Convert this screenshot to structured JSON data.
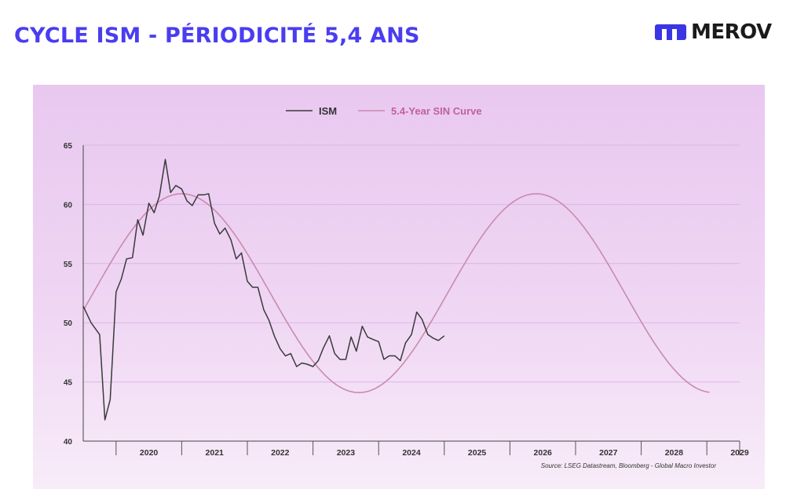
{
  "header": {
    "title": "CYCLE ISM - PÉRIODICITÉ 5,4 ANS",
    "logo_text": "MEROV",
    "logo_icon": "merov-m-icon",
    "accent_color": "#4a3df0"
  },
  "chart_data": {
    "type": "line",
    "title": "",
    "xlabel": "",
    "ylabel": "",
    "ylim": [
      40,
      65
    ],
    "yticks": [
      "65",
      "60",
      "55",
      "50",
      "45",
      "40"
    ],
    "xticks": [
      "2020",
      "2021",
      "2022",
      "2023",
      "2024",
      "2025",
      "2026",
      "2027",
      "2028",
      "2029"
    ],
    "grid": true,
    "legend_position": "top-center",
    "source": "Source: LSEG Datastream, Bloomberg - Global Macro Investor",
    "series": [
      {
        "name": "ISM",
        "color": "#3a3a3a",
        "x": [
          2019.5,
          2019.62,
          2019.75,
          2019.83,
          2019.91,
          2020.0,
          2020.08,
          2020.16,
          2020.25,
          2020.33,
          2020.41,
          2020.5,
          2020.58,
          2020.66,
          2020.75,
          2020.83,
          2020.91,
          2021.0,
          2021.08,
          2021.16,
          2021.25,
          2021.33,
          2021.41,
          2021.5,
          2021.58,
          2021.66,
          2021.75,
          2021.83,
          2021.91,
          2022.0,
          2022.08,
          2022.16,
          2022.25,
          2022.33,
          2022.41,
          2022.5,
          2022.58,
          2022.66,
          2022.75,
          2022.83,
          2022.91,
          2023.0,
          2023.08,
          2023.16,
          2023.25,
          2023.33,
          2023.41,
          2023.5,
          2023.58,
          2023.66,
          2023.75,
          2023.83,
          2023.91,
          2024.0,
          2024.08,
          2024.16,
          2024.25,
          2024.33,
          2024.41,
          2024.5,
          2024.58,
          2024.66,
          2024.75,
          2024.83,
          2024.91,
          2025.0
        ],
        "values": [
          51.4,
          50.0,
          49.0,
          41.8,
          43.5,
          52.6,
          53.7,
          55.4,
          55.5,
          58.7,
          57.4,
          60.1,
          59.3,
          60.7,
          63.8,
          61.0,
          61.6,
          61.3,
          60.3,
          59.9,
          60.8,
          60.8,
          60.9,
          58.4,
          57.5,
          58.0,
          57.0,
          55.4,
          55.9,
          53.5,
          53.0,
          53.0,
          51.1,
          50.2,
          48.9,
          47.8,
          47.2,
          47.4,
          46.3,
          46.6,
          46.5,
          46.3,
          46.8,
          47.9,
          48.9,
          47.4,
          46.9,
          46.9,
          48.8,
          47.6,
          49.7,
          48.8,
          48.6,
          48.4,
          46.9,
          47.2,
          47.2,
          46.8,
          48.3,
          49.0,
          50.9,
          50.3,
          49.0,
          48.7,
          48.5,
          48.9
        ]
      },
      {
        "name": "5.4-Year SIN Curve",
        "color": "#c98ab0",
        "model": "sine",
        "mean": 52.5,
        "amplitude": 8.4,
        "period_years": 5.4,
        "peak_year": 2021.0,
        "x_range": [
          2019.5,
          2029.05
        ]
      }
    ]
  }
}
